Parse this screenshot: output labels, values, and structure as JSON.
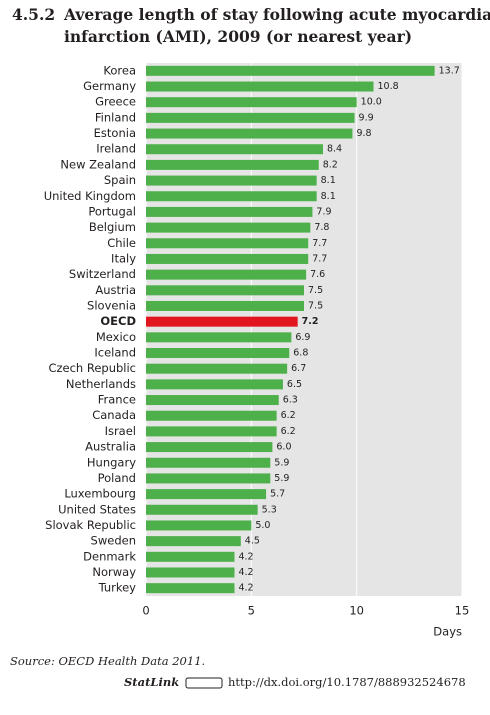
{
  "chart_data": {
    "type": "bar",
    "orientation": "horizontal",
    "title_number": "4.5.2",
    "title": [
      "Average length of stay following acute myocardial",
      "infarction (AMI), 2009 (or nearest year)"
    ],
    "categories": [
      "Korea",
      "Germany",
      "Greece",
      "Finland",
      "Estonia",
      "Ireland",
      "New Zealand",
      "Spain",
      "United Kingdom",
      "Portugal",
      "Belgium",
      "Chile",
      "Italy",
      "Switzerland",
      "Austria",
      "Slovenia",
      "OECD",
      "Mexico",
      "Iceland",
      "Czech Republic",
      "Netherlands",
      "France",
      "Canada",
      "Israel",
      "Australia",
      "Hungary",
      "Poland",
      "Luxembourg",
      "United States",
      "Slovak Republic",
      "Sweden",
      "Denmark",
      "Norway",
      "Turkey"
    ],
    "values": [
      13.7,
      10.8,
      10.0,
      9.9,
      9.8,
      8.4,
      8.2,
      8.1,
      8.1,
      7.9,
      7.8,
      7.7,
      7.7,
      7.6,
      7.5,
      7.5,
      7.2,
      6.9,
      6.8,
      6.7,
      6.5,
      6.3,
      6.2,
      6.2,
      6.0,
      5.9,
      5.9,
      5.7,
      5.3,
      5.0,
      4.5,
      4.2,
      4.2,
      4.2
    ],
    "value_labels": [
      "13.7",
      "10.8",
      "10.0",
      "9.9",
      "9.8",
      "8.4",
      "8.2",
      "8.1",
      "8.1",
      "7.9",
      "7.8",
      "7.7",
      "7.7",
      "7.6",
      "7.5",
      "7.5",
      "7.2",
      "6.9",
      "6.8",
      "6.7",
      "6.5",
      "6.3",
      "6.2",
      "6.2",
      "6.0",
      "5.9",
      "5.9",
      "5.7",
      "5.3",
      "5.0",
      "4.5",
      "4.2",
      "4.2",
      "4.2"
    ],
    "color": "#4db04a",
    "colors": [
      "#4db04a",
      "#4db04a",
      "#4db04a",
      "#4db04a",
      "#4db04a",
      "#4db04a",
      "#4db04a",
      "#4db04a",
      "#4db04a",
      "#4db04a",
      "#4db04a",
      "#4db04a",
      "#4db04a",
      "#4db04a",
      "#4db04a",
      "#4db04a",
      "#e2161f",
      "#4db04a",
      "#4db04a",
      "#4db04a",
      "#4db04a",
      "#4db04a",
      "#4db04a",
      "#4db04a",
      "#4db04a",
      "#4db04a",
      "#4db04a",
      "#4db04a",
      "#4db04a",
      "#4db04a",
      "#4db04a",
      "#4db04a",
      "#4db04a",
      "#4db04a"
    ],
    "xlim": [
      0,
      15
    ],
    "xticks": [
      0,
      5,
      10,
      15
    ],
    "grid": true,
    "xlabel": "Days",
    "source": "Source:  OECD Health Data 2011.",
    "statlink_label": "StatLink",
    "statlink_url": "http://dx.doi.org/10.1787/888932524678"
  }
}
